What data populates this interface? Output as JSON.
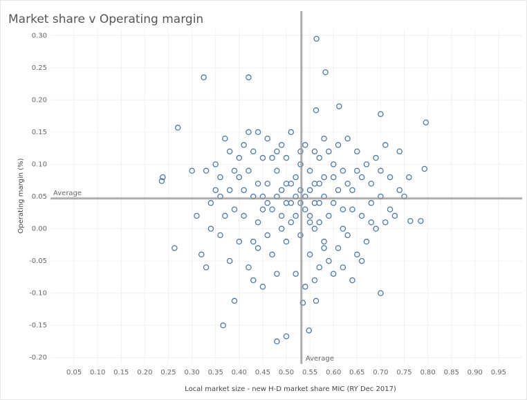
{
  "chart_data": {
    "type": "scatter",
    "title": "Market share v Operating margin",
    "x_label": "Local market size - new H-D market share MIC (RY Dec 2017)",
    "y_label": "Operating margin (%)",
    "color": "#4e79a7",
    "grid": true,
    "xlim": [
      0,
      1
    ],
    "ylim": [
      -0.21,
      0.31
    ],
    "xticks": [
      0.05,
      {
        "value": 0.1,
        "label": "0.10"
      },
      0.15,
      {
        "value": 0.2,
        "label": "0.20"
      },
      0.25,
      {
        "value": 0.3,
        "label": "0.30"
      },
      0.35,
      {
        "value": 0.4,
        "label": "0.40"
      },
      0.45,
      {
        "value": 0.5,
        "label": "0.50"
      },
      0.55,
      {
        "value": 0.6,
        "label": "0.60"
      },
      0.65,
      {
        "value": 0.7,
        "label": "0.70"
      },
      0.75,
      {
        "value": 0.8,
        "label": "0.80"
      },
      0.85,
      {
        "value": 0.9,
        "label": "0.90"
      },
      0.95
    ],
    "yticks": [
      {
        "value": 0.3,
        "label": "0.30"
      },
      0.25,
      {
        "value": 0.2,
        "label": "0.20"
      },
      0.15,
      {
        "value": 0.1,
        "label": "0.10"
      },
      0.05,
      {
        "value": 0,
        "label": "0.00"
      },
      -0.05,
      {
        "value": -0.1,
        "label": "-0.10"
      },
      -0.15,
      {
        "value": -0.2,
        "label": "-0.20"
      }
    ],
    "reference_lines": [
      {
        "axis": "x",
        "value": 0.532,
        "label": "Average"
      },
      {
        "axis": "y",
        "value": 0.047,
        "label": "Average"
      }
    ],
    "x": [
      0.564,
      0.325,
      0.42,
      0.583,
      0.27,
      0.796,
      0.238,
      0.236,
      0.263,
      0.366,
      0.39,
      0.535,
      0.563,
      0.548,
      0.48,
      0.5,
      0.7,
      0.785,
      0.763,
      0.793,
      0.7,
      0.563,
      0.612,
      0.45,
      0.47,
      0.5,
      0.52,
      0.55,
      0.57,
      0.6,
      0.62,
      0.48,
      0.53,
      0.56,
      0.58,
      0.44,
      0.41,
      0.39,
      0.36,
      0.34,
      0.33,
      0.31,
      0.3,
      0.64,
      0.66,
      0.68,
      0.7,
      0.72,
      0.74,
      0.71,
      0.69,
      0.65,
      0.63,
      0.59,
      0.54,
      0.51,
      0.46,
      0.43,
      0.4,
      0.37,
      0.35,
      0.42,
      0.49,
      0.5,
      0.47,
      0.44,
      0.42,
      0.4,
      0.38,
      0.36,
      0.34,
      0.32,
      0.33,
      0.55,
      0.57,
      0.59,
      0.61,
      0.63,
      0.65,
      0.67,
      0.69,
      0.71,
      0.73,
      0.52,
      0.54,
      0.56,
      0.6,
      0.64,
      0.66,
      0.48,
      0.45,
      0.43,
      0.49,
      0.46,
      0.48,
      0.51,
      0.53,
      0.54,
      0.56,
      0.58,
      0.59,
      0.61,
      0.62,
      0.45,
      0.43,
      0.41,
      0.4,
      0.38,
      0.37,
      0.35,
      0.39,
      0.42,
      0.44,
      0.5,
      0.52,
      0.55,
      0.57,
      0.6,
      0.63,
      0.65,
      0.67,
      0.68,
      0.66,
      0.47,
      0.49,
      0.51,
      0.53,
      0.55,
      0.57,
      0.58,
      0.6,
      0.62,
      0.64,
      0.56,
      0.58,
      0.61,
      0.53,
      0.48,
      0.45,
      0.44,
      0.41,
      0.38,
      0.36,
      0.76,
      0.75,
      0.74,
      0.72,
      0.7,
      0.68,
      0.62,
      0.58,
      0.46,
      0.43,
      0.52,
      0.5,
      0.54,
      0.56,
      0.46,
      0.49,
      0.57,
      0.53,
      0.51,
      0.55
    ],
    "y": [
      0.295,
      0.235,
      0.235,
      0.243,
      0.157,
      0.165,
      0.08,
      0.074,
      -0.03,
      -0.15,
      -0.112,
      -0.115,
      -0.112,
      -0.158,
      -0.175,
      -0.167,
      -0.1,
      0.012,
      0.012,
      0.093,
      0.178,
      0.184,
      0.19,
      0.05,
      0.03,
      0.07,
      0.02,
      0.06,
      0.04,
      0.08,
      0.03,
      0.09,
      0.1,
      0,
      -0.02,
      0.01,
      0.06,
      0.03,
      0.08,
      0.04,
      0.09,
      0.02,
      0.09,
      0.06,
      0.02,
      0.07,
      0.05,
      0.03,
      0.06,
      0.13,
      0.11,
      0.12,
      0.14,
      0.12,
      0.13,
      0.15,
      0.14,
      0.12,
      0.11,
      0.14,
      0.1,
      0.15,
      0.13,
      -0.02,
      -0.04,
      -0.03,
      -0.06,
      -0.02,
      -0.05,
      -0.01,
      0,
      -0.04,
      -0.06,
      -0.04,
      -0.06,
      -0.05,
      -0.03,
      -0.01,
      -0.04,
      -0.02,
      0,
      0.01,
      0.02,
      -0.07,
      -0.09,
      -0.08,
      -0.07,
      -0.08,
      -0.05,
      -0.07,
      -0.09,
      -0.08,
      0,
      0.07,
      0.05,
      0.04,
      0.06,
      0.03,
      0.07,
      0.05,
      0.02,
      0.06,
      0.09,
      0.03,
      0.05,
      0.02,
      0.08,
      0.06,
      0.02,
      0.06,
      0.09,
      0.09,
      0.07,
      0.11,
      0.08,
      0.09,
      0.11,
      0.1,
      0.07,
      0.09,
      0.1,
      0.04,
      0.08,
      0.11,
      0.02,
      0.01,
      -0.01,
      0.02,
      0.01,
      0.08,
      0.04,
      0,
      0.03,
      0.12,
      0.14,
      0.13,
      0.12,
      0.12,
      0.11,
      0.15,
      0.13,
      0.12,
      0.05,
      0.08,
      0.05,
      0.12,
      0.08,
      0.09,
      0.01,
      -0.06,
      -0.03,
      -0.01,
      -0.02,
      0.05,
      0.04,
      0.05,
      0.04,
      0.04,
      0.06,
      0.07,
      0.04,
      0.07,
      0.01
    ]
  }
}
